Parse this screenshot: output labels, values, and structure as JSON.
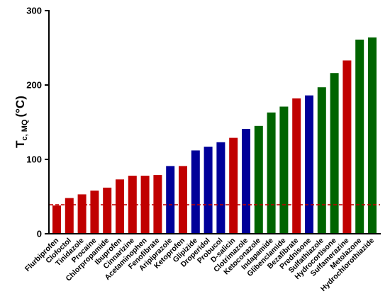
{
  "chart_data": {
    "type": "bar",
    "ylabel_main": "T",
    "ylabel_sub": "c, MQ",
    "ylabel_unit": "(°C)",
    "ylim": [
      0,
      300
    ],
    "yticks": [
      "0",
      "100",
      "200",
      "300"
    ],
    "reference_line": {
      "value": 39,
      "color": "#c00000",
      "style": "dashed"
    },
    "colors": {
      "red": "#c00000",
      "blue": "#000099",
      "green": "#006400"
    },
    "categories": [
      "Flurbiprofen",
      "Clofoctol",
      "Tinidazole",
      "Procaine",
      "Chlorpropamide",
      "Ibuprofen",
      "Cinnarizine",
      "Acetaminophen",
      "Fenofibrate",
      "Aripiprazole",
      "Ketoprofen",
      "Glipizide",
      "Droperidol",
      "Probucol",
      "D-salicin",
      "Clotrimazole",
      "Ketoconazole",
      "Indapamide",
      "Glibenclamide",
      "Bezafibrate",
      "Prednisone",
      "Sulfathiazole",
      "Hydrocortisone",
      "Sulfamerazine",
      "Metolazone",
      "Hydrochlorothiazide"
    ],
    "values": [
      38,
      48,
      53,
      58,
      62,
      73,
      78,
      78,
      79,
      91,
      91,
      112,
      117,
      123,
      129,
      141,
      145,
      163,
      171,
      182,
      186,
      197,
      216,
      233,
      261,
      264
    ],
    "bar_colors": [
      "red",
      "red",
      "red",
      "red",
      "red",
      "red",
      "red",
      "red",
      "red",
      "blue",
      "red",
      "blue",
      "blue",
      "blue",
      "red",
      "blue",
      "green",
      "green",
      "green",
      "red",
      "blue",
      "green",
      "green",
      "red",
      "green",
      "green"
    ]
  }
}
